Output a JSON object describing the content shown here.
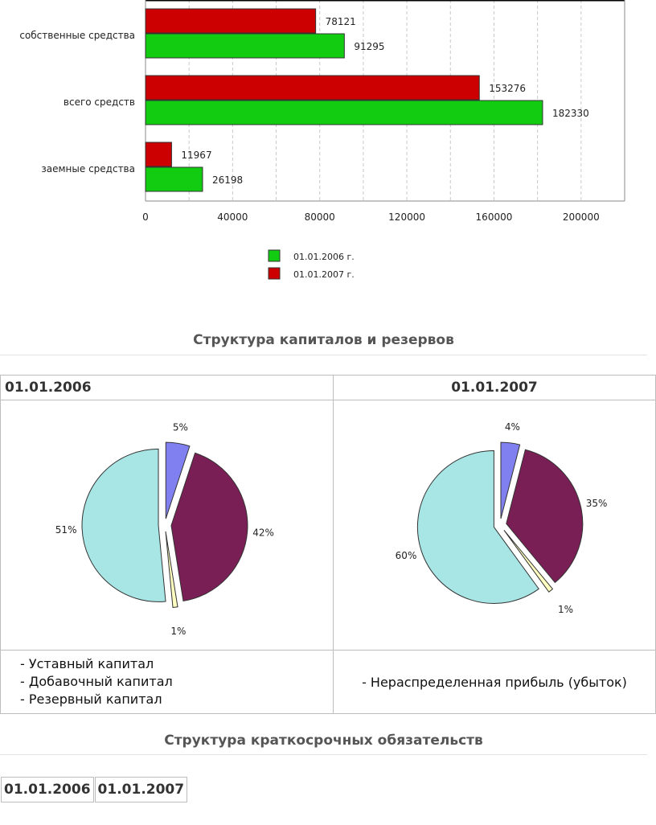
{
  "chart_data": [
    {
      "type": "bar",
      "orientation": "horizontal",
      "categories": [
        "собственные средства",
        "всего средств",
        "заемные средства"
      ],
      "series": [
        {
          "name": "01.01.2007 г.",
          "color": "#cc0000",
          "values": [
            78121,
            153276,
            11967
          ]
        },
        {
          "name": "01.01.2006 г.",
          "color": "#11cc11",
          "values": [
            91295,
            182330,
            26198
          ]
        }
      ],
      "xticks": [
        "0",
        "40000",
        "80000",
        "120000",
        "160000",
        "200000"
      ],
      "xlim": [
        0,
        220000
      ],
      "grid": true,
      "legend": [
        "01.01.2006 г.",
        "01.01.2007 г."
      ],
      "legend_colors": [
        "#11cc11",
        "#cc0000"
      ],
      "legend_position": "bottom"
    },
    {
      "type": "pie",
      "slices": [
        {
          "value": 5,
          "label": "5%",
          "color": "#8080f0"
        },
        {
          "value": 42,
          "label": "42%",
          "color": "#7a1f55"
        },
        {
          "value": 1,
          "label": "1%",
          "color": "#ffffc0"
        },
        {
          "value": 51,
          "label": "51%",
          "color": "#a8e6e6"
        }
      ]
    },
    {
      "type": "pie",
      "slices": [
        {
          "value": 4,
          "label": "4%",
          "color": "#8080f0"
        },
        {
          "value": 35,
          "label": "35%",
          "color": "#7a1f55"
        },
        {
          "value": 1,
          "label": "1%",
          "color": "#ffffc0"
        },
        {
          "value": 60,
          "label": "60%",
          "color": "#a8e6e6"
        }
      ]
    }
  ],
  "capital": {
    "title": "Структура капиталов и резервов",
    "date_left": "01.01.2006",
    "date_right": "01.01.2007",
    "legend_left": [
      "- Уставный капитал",
      "- Добавочный капитал",
      "- Резервный капитал"
    ],
    "legend_right": "- Нераспределенная прибыль (убыток)"
  },
  "liabilities": {
    "title": "Структура краткосрочных обязательств",
    "date_left": "01.01.2006",
    "date_right": "01.01.2007"
  }
}
